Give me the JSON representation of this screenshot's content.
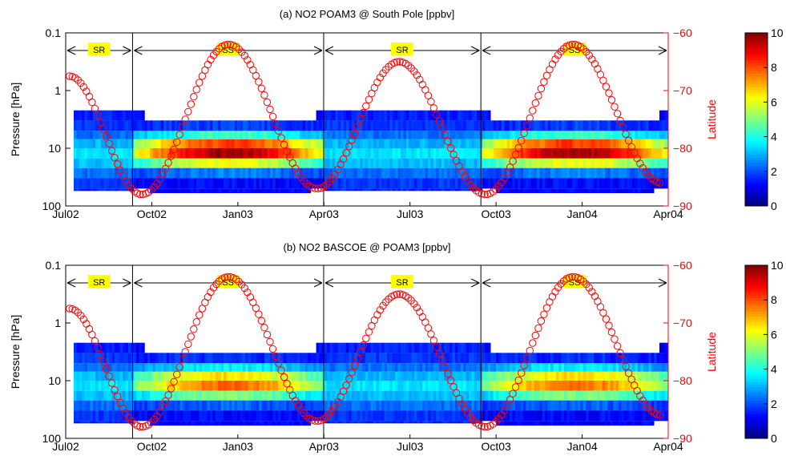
{
  "chart_data": [
    {
      "type": "heatmap",
      "title": "(a) NO2 POAM3 @ South Pole [ppbv]",
      "ylabel": "Pressure [hPa]",
      "y2label": "Latitude",
      "x_ticks": [
        "Jul02",
        "Oct02",
        "Jan03",
        "Apr03",
        "Jul03",
        "Oct03",
        "Jan04",
        "Apr04"
      ],
      "y_ticks": [
        "0.1",
        "1",
        "10",
        "100"
      ],
      "y2_ticks": [
        "−60",
        "−70",
        "−80",
        "−90"
      ],
      "y_scale": "log",
      "ylim": [
        0.1,
        100
      ],
      "y2lim": [
        -90,
        -60
      ],
      "xlim": [
        "2002-07-01",
        "2004-04-01"
      ],
      "colorbar": {
        "min": 0,
        "max": 10,
        "ticks": [
          "0",
          "2",
          "4",
          "6",
          "8",
          "10"
        ],
        "colormap": "jet"
      },
      "season_bands": [
        {
          "label": "SR",
          "start": "2002-07-01",
          "end": "2002-09-10"
        },
        {
          "label": "SS",
          "start": "2002-09-10",
          "end": "2003-04-01"
        },
        {
          "label": "SR",
          "start": "2003-04-01",
          "end": "2003-09-15"
        },
        {
          "label": "SS",
          "start": "2003-09-15",
          "end": "2004-04-01"
        }
      ],
      "latitude_series": {
        "color": "#ff0000",
        "min_lat": -88,
        "max_lat": -62,
        "points": [
          {
            "date": "2002-07-05",
            "lat": -67.5
          },
          {
            "date": "2002-09-20",
            "lat": -88
          },
          {
            "date": "2002-12-21",
            "lat": -62
          },
          {
            "date": "2003-03-25",
            "lat": -87
          },
          {
            "date": "2003-06-20",
            "lat": -65
          },
          {
            "date": "2003-09-20",
            "lat": -88
          },
          {
            "date": "2003-12-22",
            "lat": -62
          },
          {
            "date": "2004-03-25",
            "lat": -86
          }
        ]
      },
      "profile_peak": 9.5
    },
    {
      "type": "heatmap",
      "title": "(b) NO2 BASCOE @ POAM3 [ppbv]",
      "ylabel": "Pressure [hPa]",
      "y2label": "Latitude",
      "x_ticks": [
        "Jul02",
        "Oct02",
        "Jan03",
        "Apr03",
        "Jul03",
        "Oct03",
        "Jan04",
        "Apr04"
      ],
      "y_ticks": [
        "0.1",
        "1",
        "10",
        "100"
      ],
      "y2_ticks": [
        "−60",
        "−70",
        "−80",
        "−90"
      ],
      "y_scale": "log",
      "ylim": [
        0.1,
        100
      ],
      "y2lim": [
        -90,
        -60
      ],
      "xlim": [
        "2002-07-01",
        "2004-04-01"
      ],
      "colorbar": {
        "min": 0,
        "max": 10,
        "ticks": [
          "0",
          "2",
          "4",
          "6",
          "8",
          "10"
        ],
        "colormap": "jet"
      },
      "season_bands": [
        {
          "label": "SR",
          "start": "2002-07-01",
          "end": "2002-09-10"
        },
        {
          "label": "SS",
          "start": "2002-09-10",
          "end": "2003-04-01"
        },
        {
          "label": "SR",
          "start": "2003-04-01",
          "end": "2003-09-15"
        },
        {
          "label": "SS",
          "start": "2003-09-15",
          "end": "2004-04-01"
        }
      ],
      "latitude_series": {
        "color": "#ff0000",
        "min_lat": -88,
        "max_lat": -62,
        "points": [
          {
            "date": "2002-07-05",
            "lat": -67.5
          },
          {
            "date": "2002-09-20",
            "lat": -88
          },
          {
            "date": "2002-12-21",
            "lat": -62
          },
          {
            "date": "2003-03-25",
            "lat": -87
          },
          {
            "date": "2003-06-20",
            "lat": -65
          },
          {
            "date": "2003-09-20",
            "lat": -88
          },
          {
            "date": "2003-12-22",
            "lat": -62
          },
          {
            "date": "2004-03-25",
            "lat": -86
          }
        ]
      },
      "profile_peak": 7.5
    }
  ]
}
